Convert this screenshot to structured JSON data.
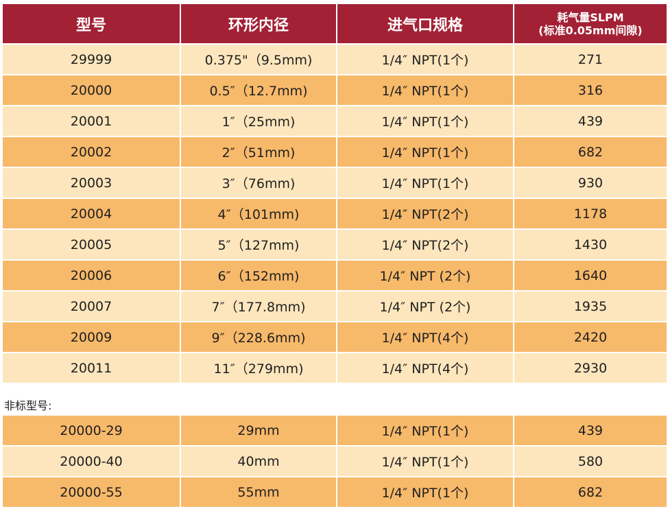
{
  "colors": {
    "header_bg": "#a32135",
    "header_text": "#ffffff",
    "row_light": "#fde6bd",
    "row_dark": "#f7b96a"
  },
  "header": {
    "col1": "型号",
    "col2": "环形内径",
    "col3": "进气口规格",
    "col4_line1": "耗气量SLPM",
    "col4_line2": "(标准0.05mm间隙)"
  },
  "rows": [
    {
      "model": "29999",
      "diameter": "0.375\"（9.5mm)",
      "inlet": "1/4″ NPT(1个)",
      "flow": "271"
    },
    {
      "model": "20000",
      "diameter": "0.5″（12.7mm)",
      "inlet": "1/4″ NPT(1个)",
      "flow": "316"
    },
    {
      "model": "20001",
      "diameter": "1″（25mm)",
      "inlet": "1/4″ NPT(1个)",
      "flow": "439"
    },
    {
      "model": "20002",
      "diameter": "2″（51mm)",
      "inlet": "1/4″ NPT(1个)",
      "flow": "682"
    },
    {
      "model": "20003",
      "diameter": "3″（76mm)",
      "inlet": "1/4″ NPT(1个)",
      "flow": "930"
    },
    {
      "model": "20004",
      "diameter": "4″（101mm)",
      "inlet": "1/4″ NPT(2个)",
      "flow": "1178"
    },
    {
      "model": "20005",
      "diameter": "5″（127mm)",
      "inlet": "1/4″ NPT(2个)",
      "flow": "1430"
    },
    {
      "model": "20006",
      "diameter": "6″（152mm)",
      "inlet": "1/4″ NPT (2个)",
      "flow": "1640"
    },
    {
      "model": "20007",
      "diameter": "7″（177.8mm)",
      "inlet": "1/4″ NPT (2个)",
      "flow": "1935"
    },
    {
      "model": "20009",
      "diameter": "9″（228.6mm)",
      "inlet": "1/4″ NPT(4个)",
      "flow": "2420"
    },
    {
      "model": "20011",
      "diameter": "11″（279mm)",
      "inlet": "1/4″ NPT(4个)",
      "flow": "2930"
    }
  ],
  "nonstandard_label": "非标型号:",
  "nonstandard_rows": [
    {
      "model": "20000-29",
      "diameter": "29mm",
      "inlet": "1/4″ NPT(1个)",
      "flow": "439"
    },
    {
      "model": "20000-40",
      "diameter": "40mm",
      "inlet": "1/4″ NPT(1个)",
      "flow": "580"
    },
    {
      "model": "20000-55",
      "diameter": "55mm",
      "inlet": "1/4″ NPT(1个)",
      "flow": "682"
    }
  ]
}
